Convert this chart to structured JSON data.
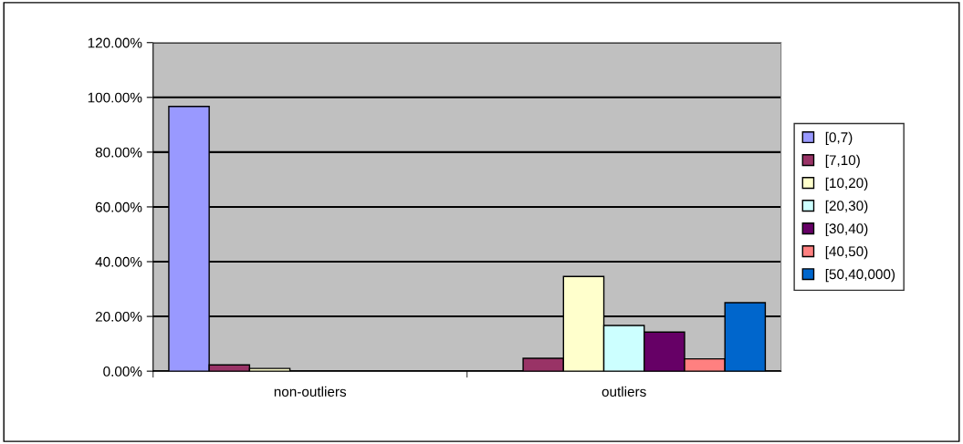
{
  "chart_data": {
    "type": "bar",
    "categories": [
      "non-outliers",
      "outliers"
    ],
    "series": [
      {
        "name": "[0,7)",
        "color": "#9999ff",
        "values": [
          96.7,
          null
        ]
      },
      {
        "name": "[7,10)",
        "color": "#993366",
        "values": [
          2.3,
          4.7
        ]
      },
      {
        "name": "[10,20)",
        "color": "#ffffcc",
        "values": [
          1.0,
          34.6
        ]
      },
      {
        "name": "[20,30)",
        "color": "#ccffff",
        "values": [
          null,
          16.7
        ]
      },
      {
        "name": "[30,40)",
        "color": "#660066",
        "values": [
          null,
          14.3
        ]
      },
      {
        "name": "[40,50)",
        "color": "#ff8080",
        "values": [
          null,
          4.5
        ]
      },
      {
        "name": "[50,40,000)",
        "color": "#0066cc",
        "values": [
          null,
          25.0
        ]
      }
    ],
    "ylim": [
      0,
      120
    ],
    "yticks": [
      {
        "value": 0,
        "label": "0.00%"
      },
      {
        "value": 20,
        "label": "20.00%"
      },
      {
        "value": 40,
        "label": "40.00%"
      },
      {
        "value": 60,
        "label": "60.00%"
      },
      {
        "value": 80,
        "label": "80.00%"
      },
      {
        "value": 100,
        "label": "100.00%"
      },
      {
        "value": 120,
        "label": "120.00%"
      }
    ],
    "grid": "y",
    "legend": "right"
  }
}
